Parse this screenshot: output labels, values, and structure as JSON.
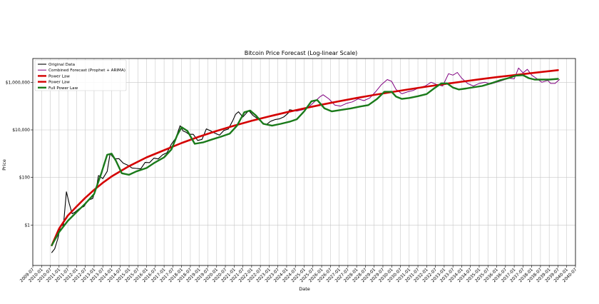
{
  "chart_data": {
    "type": "line",
    "title": "Bitcoin Price Forecast (Log-linear Scale)",
    "xlabel": "Date",
    "ylabel": "Price",
    "y_scale": "log",
    "ylim": [
      0.02,
      10000000
    ],
    "xlim": [
      "2009-07",
      "2040-07"
    ],
    "grid": true,
    "legend_position": "top-left",
    "x_ticks": [
      "2009-07",
      "2010-01",
      "2010-07",
      "2011-01",
      "2011-07",
      "2012-01",
      "2012-07",
      "2013-01",
      "2013-07",
      "2014-01",
      "2014-07",
      "2015-01",
      "2015-07",
      "2016-01",
      "2016-07",
      "2017-01",
      "2017-07",
      "2018-01",
      "2018-07",
      "2019-01",
      "2019-07",
      "2020-01",
      "2020-07",
      "2021-01",
      "2021-07",
      "2022-01",
      "2022-07",
      "2023-01",
      "2023-07",
      "2024-01",
      "2024-07",
      "2025-01",
      "2025-07",
      "2026-01",
      "2026-07",
      "2027-01",
      "2027-07",
      "2028-01",
      "2028-07",
      "2029-01",
      "2029-07",
      "2030-01",
      "2030-07",
      "2031-01",
      "2031-07",
      "2032-01",
      "2032-07",
      "2033-01",
      "2033-07",
      "2034-01",
      "2034-07",
      "2035-01",
      "2035-07",
      "2036-01",
      "2036-07",
      "2037-01",
      "2037-07",
      "2038-01",
      "2038-07",
      "2039-01",
      "2039-07",
      "2040-01",
      "2040-07"
    ],
    "y_ticks": [
      {
        "value": 1,
        "label": "$1"
      },
      {
        "value": 100,
        "label": "$100"
      },
      {
        "value": 10000,
        "label": "$10,000"
      },
      {
        "value": 1000000,
        "label": "$1,000,000"
      }
    ],
    "series": [
      {
        "name": "Original Data",
        "color": "#000000",
        "x": [
          "2010-08",
          "2010-10",
          "2010-12",
          "2011-02",
          "2011-04",
          "2011-06",
          "2011-08",
          "2011-10",
          "2011-12",
          "2012-03",
          "2012-06",
          "2012-09",
          "2012-12",
          "2013-03",
          "2013-04",
          "2013-07",
          "2013-10",
          "2013-12",
          "2014-03",
          "2014-06",
          "2014-09",
          "2014-12",
          "2015-03",
          "2015-06",
          "2015-09",
          "2015-12",
          "2016-03",
          "2016-06",
          "2016-09",
          "2016-12",
          "2017-03",
          "2017-06",
          "2017-09",
          "2017-12",
          "2018-02",
          "2018-04",
          "2018-06",
          "2018-09",
          "2018-12",
          "2019-03",
          "2019-06",
          "2019-09",
          "2019-12",
          "2020-03",
          "2020-06",
          "2020-09",
          "2020-12",
          "2021-02",
          "2021-04",
          "2021-07",
          "2021-11",
          "2022-02",
          "2022-05",
          "2022-08",
          "2022-11",
          "2023-02",
          "2023-05",
          "2023-08",
          "2023-11",
          "2024-02",
          "2024-03",
          "2024-06",
          "2024-08"
        ],
        "values": [
          0.07,
          0.1,
          0.25,
          0.9,
          1.0,
          25,
          8,
          3,
          3.5,
          5,
          6,
          11,
          13,
          50,
          120,
          90,
          180,
          1000,
          600,
          620,
          400,
          330,
          250,
          240,
          230,
          430,
          420,
          650,
          600,
          900,
          1100,
          2500,
          4500,
          15000,
          9000,
          8000,
          6500,
          6500,
          3600,
          4000,
          11000,
          9000,
          7200,
          6000,
          9500,
          10800,
          24000,
          45000,
          58000,
          35000,
          65000,
          40000,
          30000,
          21000,
          16500,
          23000,
          27000,
          29000,
          35000,
          50000,
          70000,
          65000,
          62000
        ]
      },
      {
        "name": "Combined Forecast (Prophet + ARIMA)",
        "color": "#800080",
        "x": [
          "2024-08",
          "2024-12",
          "2025-04",
          "2025-08",
          "2025-12",
          "2026-02",
          "2026-06",
          "2026-10",
          "2027-02",
          "2027-06",
          "2027-10",
          "2028-02",
          "2028-06",
          "2028-10",
          "2029-02",
          "2029-06",
          "2029-10",
          "2030-01",
          "2030-04",
          "2030-08",
          "2030-12",
          "2031-04",
          "2031-08",
          "2031-12",
          "2032-04",
          "2032-08",
          "2032-12",
          "2033-04",
          "2033-07",
          "2033-10",
          "2034-01",
          "2034-05",
          "2034-09",
          "2035-01",
          "2035-05",
          "2035-09",
          "2036-01",
          "2036-05",
          "2036-09",
          "2037-01",
          "2037-04",
          "2037-07",
          "2037-10",
          "2038-01",
          "2038-04",
          "2038-08",
          "2038-12",
          "2039-02",
          "2039-05",
          "2039-08"
        ],
        "values": [
          62000,
          70000,
          90000,
          150000,
          250000,
          300000,
          200000,
          110000,
          100000,
          130000,
          150000,
          200000,
          170000,
          220000,
          400000,
          800000,
          1300000,
          1100000,
          500000,
          330000,
          400000,
          460000,
          600000,
          700000,
          1000000,
          800000,
          700000,
          2300000,
          2000000,
          2600000,
          1500000,
          900000,
          700000,
          900000,
          1000000,
          850000,
          1000000,
          1200000,
          1500000,
          1400000,
          4000000,
          2500000,
          3500000,
          2000000,
          1500000,
          1000000,
          1200000,
          900000,
          900000,
          1300000
        ]
      },
      {
        "name": "Power Law",
        "color": "#d40000",
        "x": [
          "2010-08",
          "2011-01",
          "2011-07",
          "2012-01",
          "2012-07",
          "2013-01",
          "2013-07",
          "2014-01",
          "2015-01",
          "2016-01",
          "2017-01",
          "2018-01",
          "2019-01",
          "2020-01",
          "2021-01",
          "2022-01",
          "2023-01",
          "2024-01",
          "2025-01",
          "2026-01",
          "2027-01",
          "2028-01",
          "2029-01",
          "2030-01",
          "2031-01",
          "2032-01",
          "2033-01",
          "2034-01",
          "2035-01",
          "2036-01",
          "2037-01",
          "2038-01",
          "2039-01",
          "2039-07"
        ],
        "values": [
          0.14,
          0.7,
          2.5,
          6,
          14,
          30,
          60,
          110,
          300,
          700,
          1400,
          2800,
          5200,
          9000,
          15000,
          24000,
          37000,
          55000,
          80000,
          115000,
          160000,
          220000,
          295000,
          390000,
          510000,
          660000,
          840000,
          1060000,
          1330000,
          1650000,
          2000000,
          2450000,
          2950000,
          3250000
        ]
      },
      {
        "name": "Power Law",
        "color": "#d40000",
        "x": [],
        "values": []
      },
      {
        "name": "Full Power Law",
        "color": "#1a7a1a",
        "x": [
          "2010-08",
          "2011-01",
          "2011-07",
          "2012-01",
          "2012-07",
          "2013-01",
          "2013-06",
          "2013-10",
          "2014-01",
          "2014-04",
          "2014-08",
          "2015-01",
          "2015-06",
          "2016-01",
          "2016-06",
          "2017-01",
          "2017-06",
          "2017-10",
          "2018-01",
          "2018-05",
          "2018-10",
          "2019-04",
          "2019-10",
          "2020-04",
          "2020-10",
          "2021-03",
          "2021-08",
          "2021-12",
          "2022-04",
          "2022-09",
          "2023-03",
          "2023-09",
          "2024-03",
          "2024-08",
          "2025-01",
          "2025-06",
          "2025-10",
          "2026-03",
          "2026-08",
          "2027-03",
          "2027-09",
          "2028-03",
          "2028-09",
          "2029-03",
          "2029-08",
          "2030-01",
          "2030-04",
          "2030-08",
          "2031-01",
          "2031-07",
          "2032-01",
          "2032-06",
          "2032-11",
          "2033-03",
          "2033-07",
          "2033-11",
          "2034-04",
          "2034-09",
          "2035-03",
          "2035-09",
          "2036-03",
          "2036-09",
          "2037-02",
          "2037-07",
          "2037-11",
          "2038-03",
          "2038-07",
          "2039-01",
          "2039-07"
        ],
        "values": [
          0.14,
          0.5,
          1.5,
          3.5,
          8,
          20,
          150,
          900,
          1000,
          500,
          150,
          130,
          180,
          250,
          400,
          700,
          1500,
          6000,
          13000,
          9000,
          2600,
          3000,
          4000,
          5200,
          7000,
          15000,
          55000,
          65000,
          40000,
          18000,
          15000,
          18000,
          22000,
          28000,
          60000,
          160000,
          180000,
          80000,
          60000,
          70000,
          80000,
          95000,
          110000,
          200000,
          400000,
          400000,
          250000,
          200000,
          220000,
          260000,
          320000,
          550000,
          900000,
          900000,
          600000,
          500000,
          550000,
          620000,
          700000,
          900000,
          1200000,
          1500000,
          1900000,
          2000000,
          1500000,
          1300000,
          1300000,
          1300000,
          1400000
        ]
      }
    ]
  }
}
